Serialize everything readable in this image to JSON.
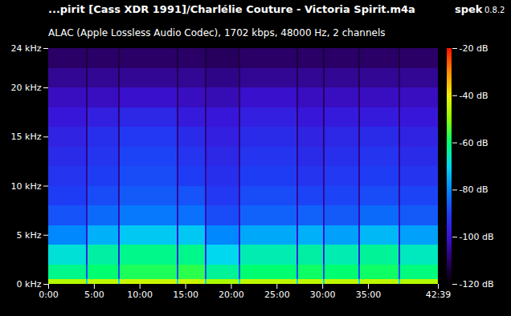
{
  "chart_data": {
    "type": "heatmap",
    "title": "...pirit [Cass XDR 1991]/Charlélie Couture - Victoria Spirit.m4a",
    "app": "spek",
    "version": "0.8.2",
    "subtitle": "ALAC (Apple Lossless Audio Codec), 1702 kbps, 48000 Hz, 2 channels",
    "xlim": [
      0,
      2559
    ],
    "xticks": [
      {
        "value": 0,
        "label": "0:00"
      },
      {
        "value": 300,
        "label": "5:00"
      },
      {
        "value": 600,
        "label": "10:00"
      },
      {
        "value": 900,
        "label": "15:00"
      },
      {
        "value": 1200,
        "label": "20:00"
      },
      {
        "value": 1500,
        "label": "25:00"
      },
      {
        "value": 1800,
        "label": "30:00"
      },
      {
        "value": 2100,
        "label": "35:00"
      },
      {
        "value": 2559,
        "label": "42:39"
      }
    ],
    "ylim": [
      0,
      24
    ],
    "yticks": [
      {
        "value": 0,
        "label": "0 kHz"
      },
      {
        "value": 5,
        "label": "5 kHz"
      },
      {
        "value": 10,
        "label": "10 kHz"
      },
      {
        "value": 15,
        "label": "15 kHz"
      },
      {
        "value": 20,
        "label": "20 kHz"
      },
      {
        "value": 24,
        "label": "24 kHz"
      }
    ],
    "time_edges": [
      0,
      248,
      258,
      459,
      469,
      845,
      855,
      1029,
      1039,
      1251,
      1261,
      1631,
      1641,
      1805,
      1815,
      2037,
      2047,
      2301,
      2311,
      2559
    ],
    "freq_edges": [
      0,
      0.5,
      2,
      4,
      6,
      8,
      10,
      12,
      14,
      16,
      18,
      20,
      22,
      24
    ],
    "cells": [
      [
        -46,
        -62,
        -68,
        -80,
        -87,
        -90,
        -92,
        -94,
        -96,
        -99,
        -102,
        -106,
        -110
      ],
      [
        -70,
        -88,
        -96,
        -100,
        -103,
        -105,
        -106,
        -107,
        -108,
        -109,
        -110,
        -112,
        -114
      ],
      [
        -45,
        -60,
        -64,
        -75,
        -84,
        -88,
        -90,
        -92,
        -93,
        -97,
        -102,
        -106,
        -110
      ],
      [
        -70,
        -88,
        -96,
        -100,
        -103,
        -105,
        -106,
        -107,
        -108,
        -109,
        -110,
        -112,
        -114
      ],
      [
        -44,
        -58,
        -62,
        -72,
        -82,
        -86,
        -88,
        -89,
        -91,
        -95,
        -101,
        -106,
        -110
      ],
      [
        -70,
        -88,
        -96,
        -100,
        -103,
        -105,
        -106,
        -107,
        -108,
        -109,
        -110,
        -112,
        -114
      ],
      [
        -44,
        -57,
        -62,
        -72,
        -83,
        -87,
        -90,
        -92,
        -94,
        -98,
        -102,
        -106,
        -110
      ],
      [
        -70,
        -88,
        -96,
        -100,
        -103,
        -105,
        -106,
        -107,
        -108,
        -109,
        -110,
        -112,
        -114
      ],
      [
        -47,
        -63,
        -70,
        -80,
        -88,
        -91,
        -93,
        -95,
        -97,
        -99,
        -103,
        -107,
        -111
      ],
      [
        -70,
        -88,
        -96,
        -100,
        -103,
        -105,
        -106,
        -107,
        -108,
        -109,
        -110,
        -112,
        -114
      ],
      [
        -45,
        -60,
        -65,
        -76,
        -85,
        -88,
        -90,
        -92,
        -94,
        -97,
        -101,
        -106,
        -110
      ],
      [
        -70,
        -88,
        -96,
        -100,
        -103,
        -105,
        -106,
        -107,
        -108,
        -109,
        -110,
        -112,
        -114
      ],
      [
        -45,
        -59,
        -64,
        -75,
        -85,
        -89,
        -92,
        -94,
        -96,
        -99,
        -102,
        -106,
        -110
      ],
      [
        -70,
        -88,
        -96,
        -100,
        -103,
        -105,
        -106,
        -107,
        -108,
        -109,
        -110,
        -112,
        -114
      ],
      [
        -45,
        -60,
        -65,
        -77,
        -86,
        -89,
        -91,
        -93,
        -95,
        -98,
        -102,
        -106,
        -110
      ],
      [
        -70,
        -88,
        -96,
        -100,
        -103,
        -105,
        -106,
        -107,
        -108,
        -109,
        -110,
        -112,
        -114
      ],
      [
        -45,
        -59,
        -63,
        -74,
        -84,
        -88,
        -90,
        -92,
        -94,
        -98,
        -102,
        -106,
        -110
      ],
      [
        -70,
        -88,
        -96,
        -100,
        -103,
        -105,
        -106,
        -107,
        -108,
        -109,
        -110,
        -112,
        -114
      ],
      [
        -46,
        -61,
        -66,
        -77,
        -86,
        -89,
        -92,
        -94,
        -96,
        -99,
        -102,
        -106,
        -110
      ]
    ],
    "colorbar": {
      "range": [
        -120,
        -20
      ],
      "ticks": [
        {
          "value": -20,
          "label": "-20 dB"
        },
        {
          "value": -40,
          "label": "-40 dB"
        },
        {
          "value": -60,
          "label": "-60 dB"
        },
        {
          "value": -80,
          "label": "-80 dB"
        },
        {
          "value": -100,
          "label": "-100 dB"
        },
        {
          "value": -120,
          "label": "-120 dB"
        }
      ]
    }
  }
}
